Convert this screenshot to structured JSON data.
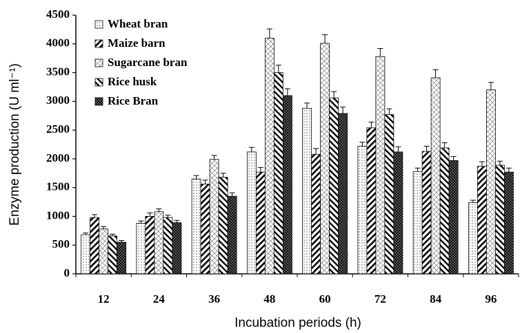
{
  "chart_data": {
    "type": "bar",
    "xlabel": "Incubation periods (h)",
    "ylabel": "Enzyme production (U ml⁻¹)",
    "categories": [
      "12",
      "24",
      "36",
      "48",
      "60",
      "72",
      "84",
      "96"
    ],
    "series": [
      {
        "name": "Wheat bran",
        "color": "#000000",
        "pattern": "dots",
        "values": [
          680,
          880,
          1650,
          2120,
          2880,
          2220,
          1780,
          1240
        ],
        "errors": [
          30,
          40,
          60,
          80,
          90,
          70,
          60,
          40
        ]
      },
      {
        "name": "Maize barn",
        "color": "#000000",
        "pattern": "diag",
        "values": [
          980,
          1000,
          1560,
          1770,
          2080,
          2540,
          2130,
          1870
        ],
        "errors": [
          50,
          60,
          70,
          80,
          100,
          100,
          90,
          80
        ]
      },
      {
        "name": "Sugarcane bran",
        "color": "#000000",
        "pattern": "cross",
        "values": [
          780,
          1080,
          1990,
          4100,
          4010,
          3780,
          3410,
          3200
        ],
        "errors": [
          40,
          50,
          70,
          160,
          150,
          140,
          140,
          130
        ]
      },
      {
        "name": "Rice husk",
        "color": "#000000",
        "pattern": "back",
        "values": [
          660,
          980,
          1680,
          3500,
          3060,
          2770,
          2190,
          1890
        ],
        "errors": [
          30,
          40,
          70,
          130,
          110,
          100,
          90,
          70
        ]
      },
      {
        "name": "Rice Bran",
        "color": "#000000",
        "pattern": "check",
        "values": [
          550,
          890,
          1350,
          3100,
          2790,
          2120,
          1970,
          1770
        ],
        "errors": [
          30,
          40,
          60,
          120,
          110,
          90,
          70,
          70
        ]
      }
    ],
    "ylim": [
      0,
      4500
    ],
    "yticks": [
      0,
      500,
      1000,
      1500,
      2000,
      2500,
      3000,
      3500,
      4000,
      4500
    ],
    "grid": false,
    "legend": "upper left"
  }
}
